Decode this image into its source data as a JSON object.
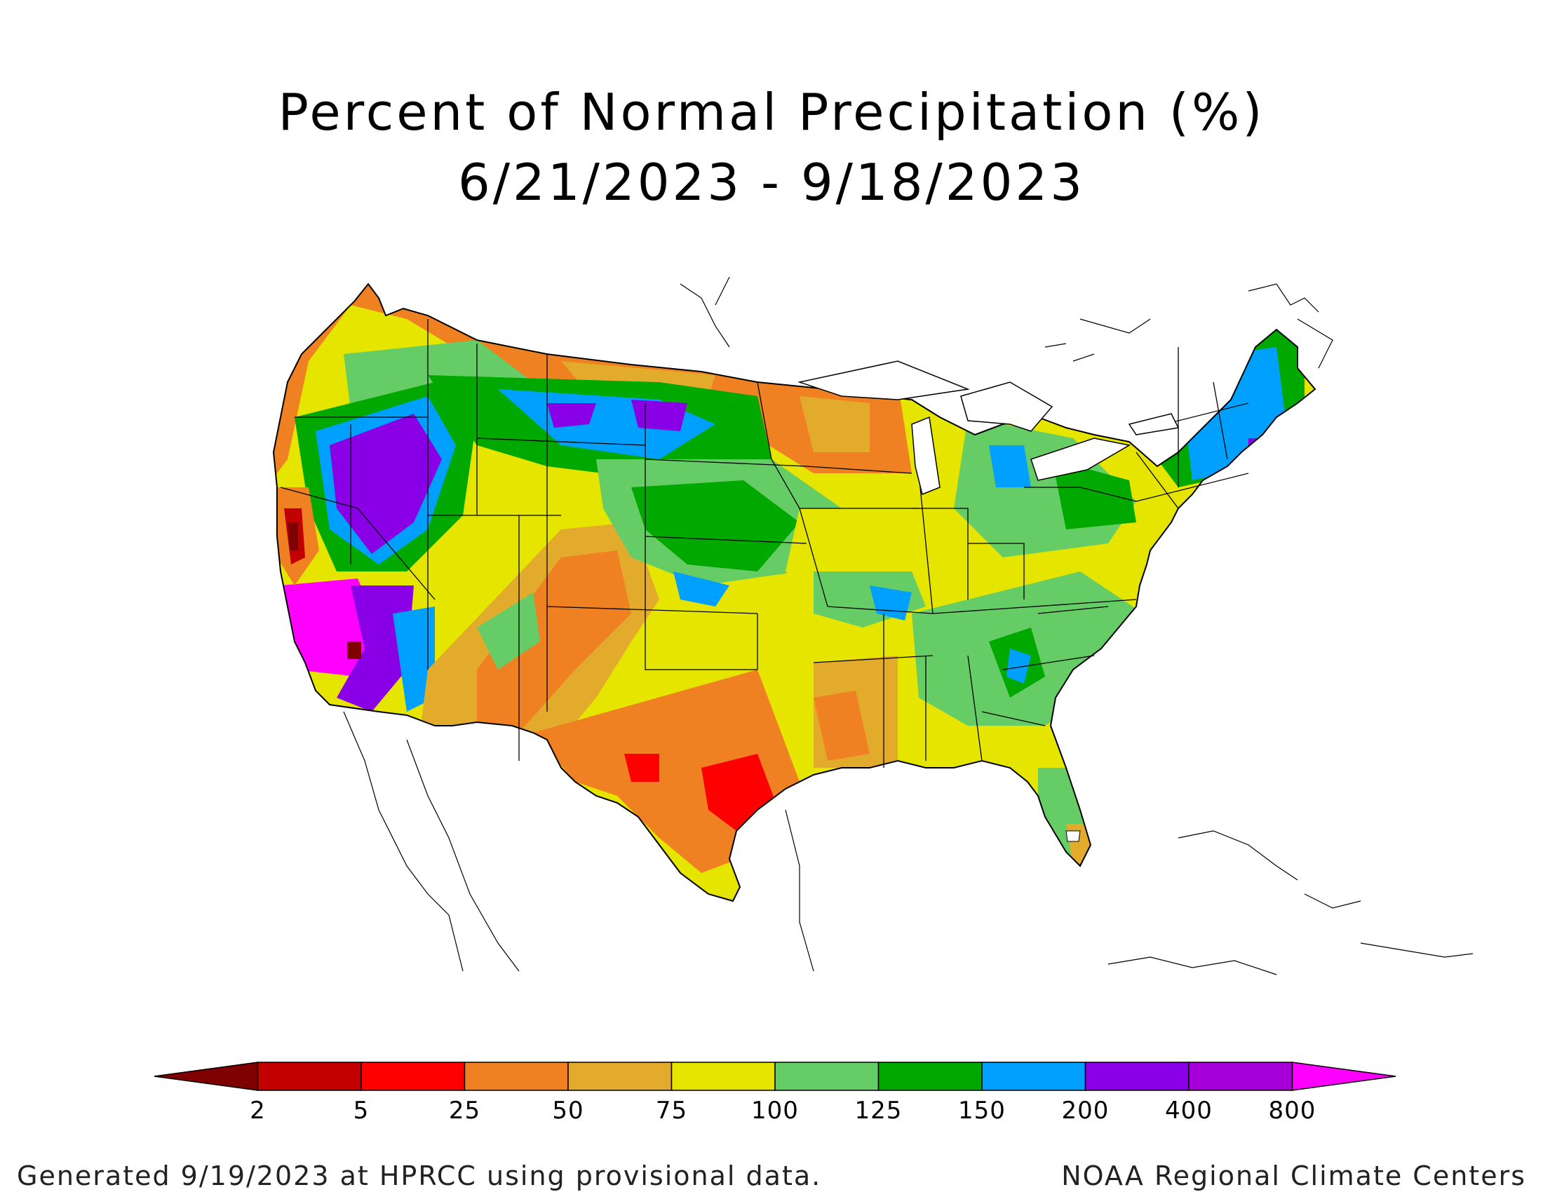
{
  "title": {
    "line1": "Percent of Normal Precipitation (%)",
    "line2": "6/21/2023 - 9/18/2023"
  },
  "legend": {
    "bins": [
      {
        "color": "#7f0000"
      },
      {
        "color": "#c20000"
      },
      {
        "color": "#ff0000"
      },
      {
        "color": "#ef8123"
      },
      {
        "color": "#e3ab2b"
      },
      {
        "color": "#e5e500"
      },
      {
        "color": "#66cc66"
      },
      {
        "color": "#00a800"
      },
      {
        "color": "#00a0ff"
      },
      {
        "color": "#8a00e6"
      },
      {
        "color": "#a600d9"
      },
      {
        "color": "#ff00ff"
      }
    ],
    "tick_labels": [
      "2",
      "5",
      "25",
      "50",
      "75",
      "100",
      "125",
      "150",
      "200",
      "400",
      "800"
    ]
  },
  "footer": {
    "left": "Generated 9/19/2023 at HPRCC using provisional data.",
    "right": "NOAA Regional Climate Centers"
  }
}
